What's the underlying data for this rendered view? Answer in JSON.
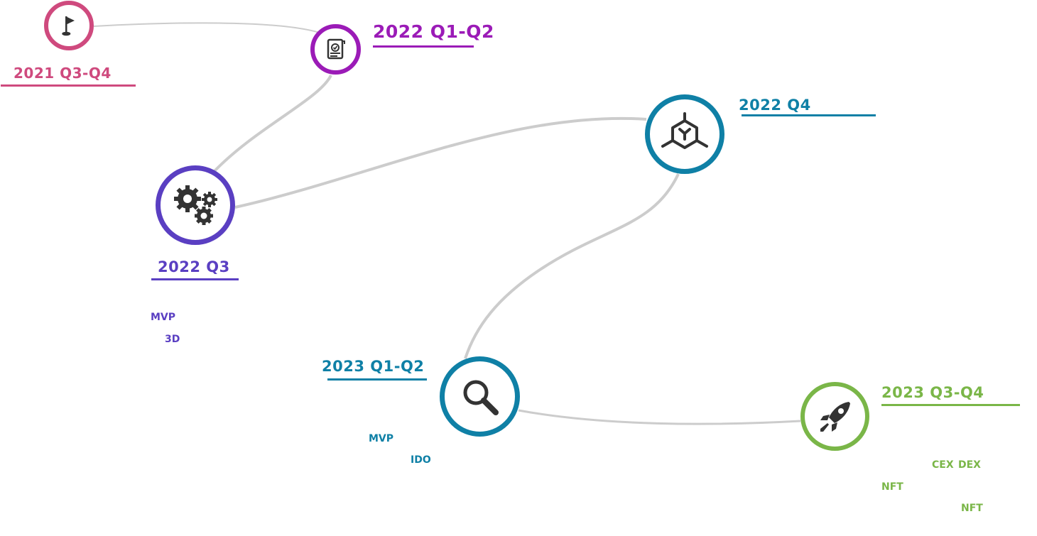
{
  "colors": {
    "phase_2021": "#cf4a7e",
    "phase_2022_q1q2": "#9b1bb7",
    "phase_2022_q3": "#5a3fc2",
    "phase_2022_q4": "#0f80a6",
    "phase_2023_q1q2": "#0f80a6",
    "phase_2023_q3q4": "#7ab648",
    "connector": "#cccccc",
    "icon": "#333333"
  },
  "phases": {
    "p2021_q3q4": {
      "title": "2021 Q3-Q4",
      "icon": "flag-icon"
    },
    "p2022_q1q2": {
      "title": "2022 Q1-Q2",
      "icon": "certificate-icon"
    },
    "p2022_q3": {
      "title": "2022 Q3",
      "icon": "gears-icon",
      "items": [
        "MVP",
        "3D"
      ]
    },
    "p2022_q4": {
      "title": "2022 Q4",
      "icon": "cube-network-icon"
    },
    "p2023_q1q2": {
      "title": "2023 Q1-Q2",
      "icon": "search-icon",
      "items": [
        "MVP",
        "IDO"
      ]
    },
    "p2023_q3q4": {
      "title": "2023 Q3-Q4",
      "icon": "rocket-icon",
      "items": [
        "CEX",
        "DEX",
        "NFT",
        "NFT"
      ]
    }
  }
}
